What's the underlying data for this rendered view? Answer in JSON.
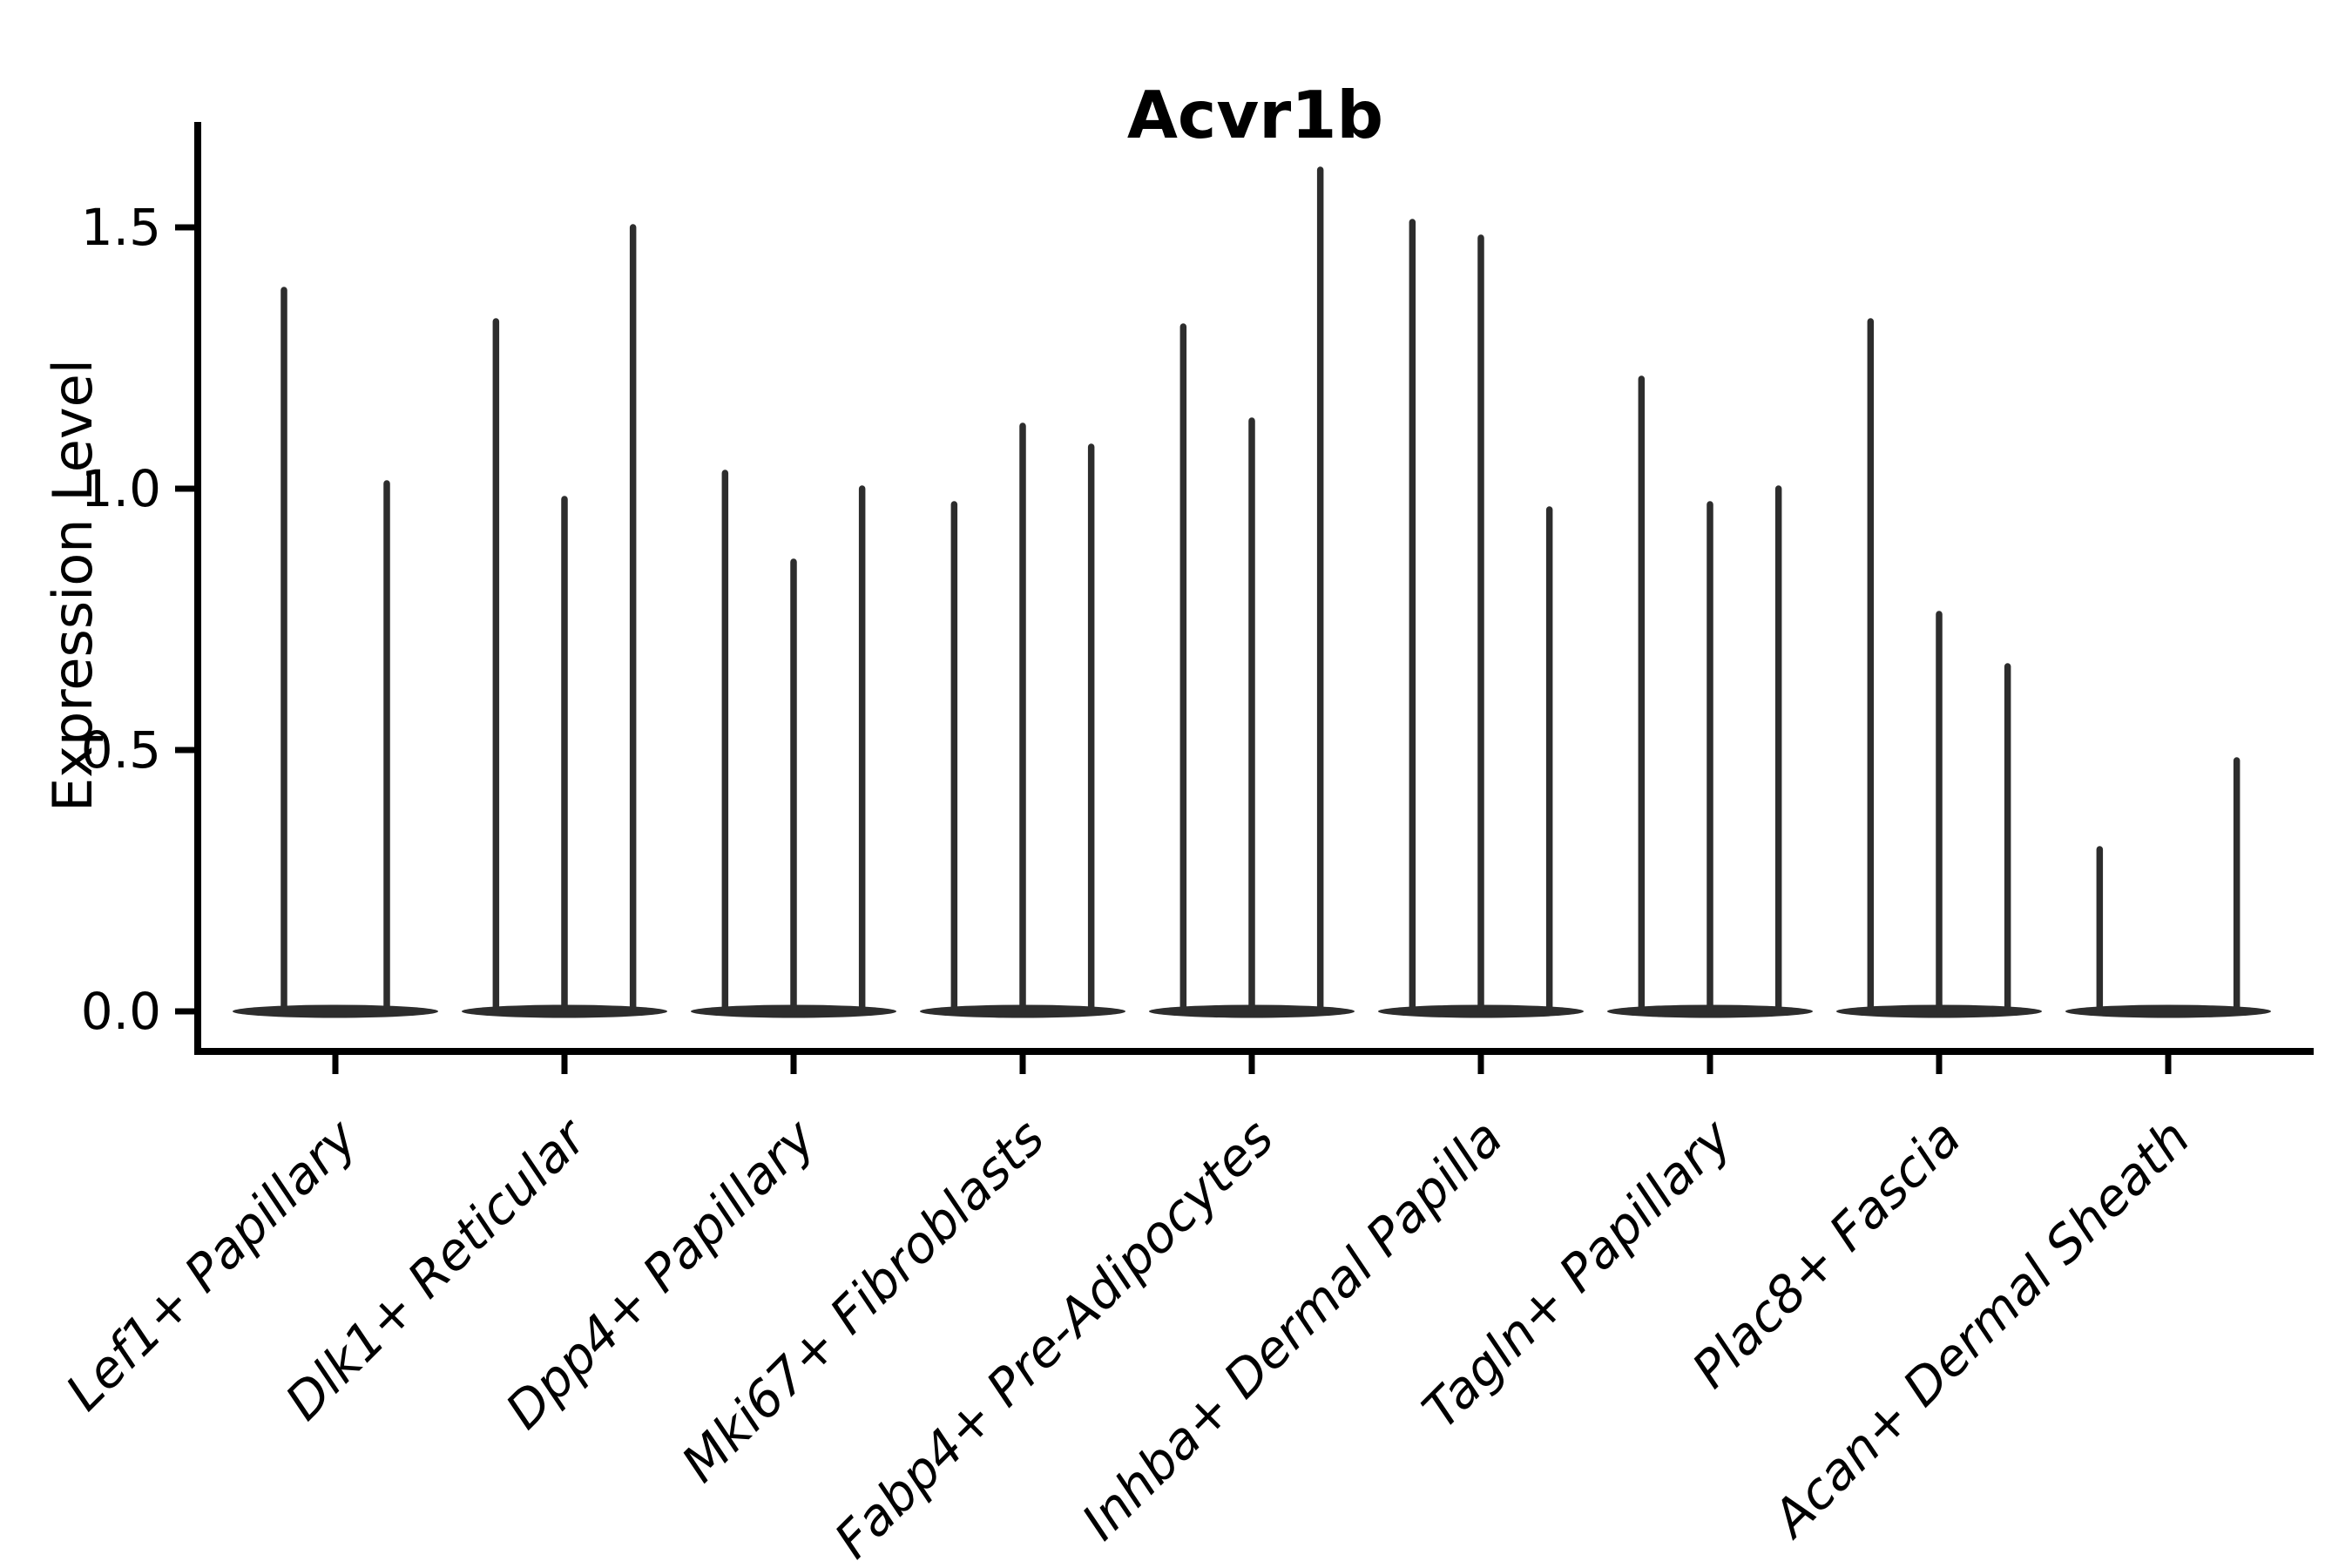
{
  "figure": {
    "title": "Acvr1b",
    "ylabel": "Expression Level"
  },
  "colors": {
    "axis": "#000000",
    "text": "#000000",
    "violin": "#2d2d2d",
    "background": "#ffffff"
  },
  "chart_data": {
    "type": "violin",
    "title": "Acvr1b",
    "xlabel": "",
    "ylabel": "Expression Level",
    "ylim": [
      -0.08,
      1.7
    ],
    "yticks": [
      0.0,
      0.5,
      1.0,
      1.5
    ],
    "grid": false,
    "legend": false,
    "categories": [
      "Lef1+ Papillary",
      "Dlk1+ Reticular",
      "Dpp4+ Papillary",
      "Mki67+ Fibroblasts",
      "Fabp4+ Pre-Adipocytes",
      "Inhba+ Dermal Papilla",
      "Tagln+ Papillary",
      "Plac8+ Fascia",
      "Acan+ Dermal Sheath"
    ],
    "series": [
      {
        "category": "Lef1+ Papillary",
        "spike_heights": [
          1.38,
          1.01
        ]
      },
      {
        "category": "Dlk1+ Reticular",
        "spike_heights": [
          1.32,
          0.98,
          1.5
        ]
      },
      {
        "category": "Dpp4+ Papillary",
        "spike_heights": [
          1.03,
          0.86,
          1.0
        ]
      },
      {
        "category": "Mki67+ Fibroblasts",
        "spike_heights": [
          0.97,
          1.12,
          1.08
        ]
      },
      {
        "category": "Fabp4+ Pre-Adipocytes",
        "spike_heights": [
          1.31,
          1.13,
          1.61
        ]
      },
      {
        "category": "Inhba+ Dermal Papilla",
        "spike_heights": [
          1.51,
          1.48,
          0.96
        ]
      },
      {
        "category": "Tagln+ Papillary",
        "spike_heights": [
          1.21,
          0.97,
          1.0
        ]
      },
      {
        "category": "Plac8+ Fascia",
        "spike_heights": [
          1.32,
          0.76,
          0.66
        ]
      },
      {
        "category": "Acan+ Dermal Sheath",
        "spike_heights": [
          0.31,
          0.0,
          0.48
        ]
      }
    ]
  }
}
